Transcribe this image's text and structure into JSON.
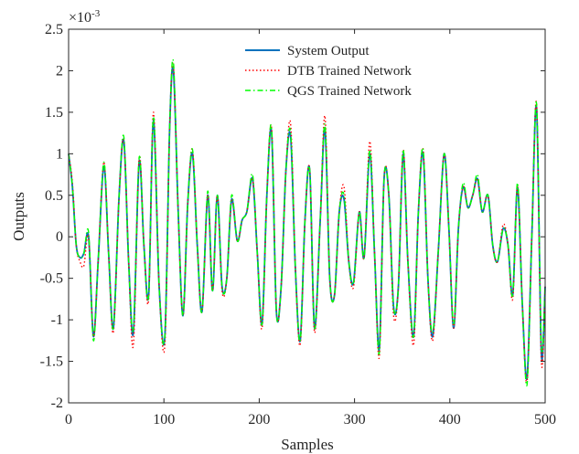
{
  "chart_data": {
    "type": "line",
    "title": "",
    "xlabel": "Samples",
    "ylabel": "Outputs",
    "exponent_label": "×10",
    "exponent_power": "-3",
    "xlim": [
      0,
      500
    ],
    "ylim": [
      -2,
      2.5
    ],
    "xticks": [
      0,
      100,
      200,
      300,
      400,
      500
    ],
    "yticks": [
      -2,
      -1.5,
      -1,
      -0.5,
      0,
      0.5,
      1,
      1.5,
      2,
      2.5
    ],
    "xtick_labels": [
      "0",
      "100",
      "200",
      "300",
      "400",
      "500"
    ],
    "ytick_labels": [
      "-2",
      "-1.5",
      "-1",
      "-0.5",
      "0",
      "0.5",
      "1",
      "1.5",
      "2",
      "2.5"
    ],
    "grid": false,
    "legend_position": "top-center",
    "series": [
      {
        "name": "System Output",
        "color": "#0072BD",
        "style": "solid",
        "x": [
          0,
          4,
          8,
          12,
          16,
          21,
          26,
          31,
          37,
          42,
          47,
          53,
          58,
          63,
          68,
          74,
          79,
          84,
          89,
          95,
          101,
          106,
          110,
          115,
          120,
          125,
          130,
          135,
          140,
          146,
          151,
          156,
          161,
          166,
          171,
          177,
          182,
          187,
          193,
          198,
          203,
          208,
          213,
          218,
          223,
          228,
          233,
          238,
          243,
          248,
          253,
          258,
          264,
          269,
          274,
          279,
          284,
          289,
          294,
          299,
          305,
          310,
          316,
          321,
          326,
          331,
          336,
          341,
          346,
          351,
          356,
          362,
          367,
          372,
          377,
          382,
          388,
          394,
          399,
          404,
          409,
          414,
          419,
          424,
          429,
          434,
          440,
          445,
          450,
          456,
          461,
          466,
          471,
          476,
          481,
          486,
          491,
          496,
          500
        ],
        "y": [
          1.0,
          0.6,
          -0.1,
          -0.25,
          -0.2,
          0.0,
          -1.2,
          -0.3,
          0.85,
          -0.2,
          -1.1,
          0.5,
          1.15,
          -0.3,
          -1.15,
          0.9,
          -0.1,
          -0.7,
          1.4,
          -0.6,
          -1.2,
          1.3,
          2.0,
          0.3,
          -0.95,
          0.4,
          1.0,
          -0.1,
          -0.9,
          0.5,
          -0.65,
          0.5,
          -0.6,
          -0.5,
          0.45,
          -0.05,
          0.2,
          0.3,
          0.7,
          -0.2,
          -1.05,
          0.5,
          1.25,
          -0.9,
          -0.6,
          0.8,
          1.2,
          -0.4,
          -1.25,
          0.2,
          0.8,
          -1.1,
          0.2,
          1.3,
          -0.5,
          -0.7,
          0.3,
          0.45,
          -0.3,
          -0.55,
          0.3,
          -0.25,
          1.0,
          -0.2,
          -1.35,
          0.7,
          0.5,
          -0.85,
          -0.6,
          1.0,
          -0.3,
          -1.2,
          0.3,
          1.0,
          -0.5,
          -1.2,
          -0.15,
          1.0,
          0.1,
          -1.1,
          0.1,
          0.6,
          0.35,
          0.5,
          0.7,
          0.3,
          0.5,
          -0.1,
          -0.3,
          0.1,
          -0.1,
          -0.7,
          0.6,
          -0.8,
          -1.7,
          0.0,
          1.55,
          -1.4,
          -0.6
        ]
      },
      {
        "name": "DTB Trained Network",
        "color": "#FF0000",
        "style": "dotted",
        "x": [
          0,
          4,
          8,
          12,
          16,
          21,
          26,
          31,
          37,
          42,
          47,
          53,
          58,
          63,
          68,
          74,
          79,
          84,
          89,
          95,
          101,
          106,
          110,
          115,
          120,
          125,
          130,
          135,
          140,
          146,
          151,
          156,
          161,
          166,
          171,
          177,
          182,
          187,
          193,
          198,
          203,
          208,
          213,
          218,
          223,
          228,
          233,
          238,
          243,
          248,
          253,
          258,
          264,
          269,
          274,
          279,
          284,
          289,
          294,
          299,
          305,
          310,
          316,
          321,
          326,
          331,
          336,
          341,
          346,
          351,
          356,
          362,
          367,
          372,
          377,
          382,
          388,
          394,
          399,
          404,
          409,
          414,
          419,
          424,
          429,
          434,
          440,
          445,
          450,
          456,
          461,
          466,
          471,
          476,
          481,
          486,
          491,
          496,
          500
        ],
        "y": [
          1.0,
          0.65,
          -0.1,
          -0.3,
          -0.35,
          0.0,
          -1.2,
          -0.3,
          0.9,
          -0.2,
          -1.15,
          0.5,
          1.15,
          -0.3,
          -1.3,
          0.95,
          -0.1,
          -0.75,
          1.5,
          -0.6,
          -1.3,
          1.3,
          2.05,
          0.3,
          -0.95,
          0.4,
          1.05,
          -0.1,
          -0.9,
          0.5,
          -0.65,
          0.5,
          -0.65,
          -0.5,
          0.45,
          -0.05,
          0.2,
          0.3,
          0.7,
          -0.2,
          -1.1,
          0.5,
          1.3,
          -0.9,
          -0.6,
          0.8,
          1.35,
          -0.4,
          -1.3,
          0.2,
          0.8,
          -1.15,
          0.2,
          1.45,
          -0.5,
          -0.7,
          0.3,
          0.6,
          -0.3,
          -0.6,
          0.3,
          -0.25,
          1.15,
          -0.2,
          -1.45,
          0.7,
          0.5,
          -0.95,
          -0.6,
          1.05,
          -0.3,
          -1.3,
          0.3,
          1.05,
          -0.5,
          -1.25,
          -0.15,
          1.0,
          0.1,
          -1.1,
          0.1,
          0.6,
          0.35,
          0.5,
          0.7,
          0.3,
          0.5,
          -0.1,
          -0.3,
          0.15,
          -0.1,
          -0.75,
          0.6,
          -0.8,
          -1.75,
          0.0,
          1.6,
          -1.5,
          -0.6
        ]
      },
      {
        "name": "QGS Trained Network",
        "color": "#00FF00",
        "style": "dashdot",
        "x": [
          0,
          4,
          8,
          12,
          16,
          21,
          26,
          31,
          37,
          42,
          47,
          53,
          58,
          63,
          68,
          74,
          79,
          84,
          89,
          95,
          101,
          106,
          110,
          115,
          120,
          125,
          130,
          135,
          140,
          146,
          151,
          156,
          161,
          166,
          171,
          177,
          182,
          187,
          193,
          198,
          203,
          208,
          213,
          218,
          223,
          228,
          233,
          238,
          243,
          248,
          253,
          258,
          264,
          269,
          274,
          279,
          284,
          289,
          294,
          299,
          305,
          310,
          316,
          321,
          326,
          331,
          336,
          341,
          346,
          351,
          356,
          362,
          367,
          372,
          377,
          382,
          388,
          394,
          399,
          404,
          409,
          414,
          419,
          424,
          429,
          434,
          440,
          445,
          450,
          456,
          461,
          466,
          471,
          476,
          481,
          486,
          491,
          496,
          500
        ],
        "y": [
          1.0,
          0.6,
          -0.1,
          -0.25,
          -0.2,
          0.05,
          -1.25,
          -0.3,
          0.9,
          -0.2,
          -1.1,
          0.5,
          1.2,
          -0.3,
          -1.1,
          0.95,
          -0.1,
          -0.7,
          1.45,
          -0.6,
          -1.2,
          1.3,
          2.1,
          0.3,
          -0.95,
          0.4,
          1.05,
          -0.1,
          -0.9,
          0.55,
          -0.65,
          0.5,
          -0.6,
          -0.5,
          0.5,
          -0.05,
          0.2,
          0.3,
          0.75,
          -0.2,
          -1.05,
          0.5,
          1.3,
          -0.9,
          -0.6,
          0.8,
          1.25,
          -0.4,
          -1.25,
          0.2,
          0.8,
          -1.1,
          0.2,
          1.35,
          -0.5,
          -0.7,
          0.3,
          0.5,
          -0.3,
          -0.55,
          0.3,
          -0.25,
          1.05,
          -0.2,
          -1.4,
          0.7,
          0.5,
          -0.85,
          -0.6,
          1.05,
          -0.3,
          -1.2,
          0.3,
          1.05,
          -0.5,
          -1.15,
          -0.15,
          1.0,
          0.1,
          -1.05,
          0.1,
          0.65,
          0.35,
          0.5,
          0.75,
          0.3,
          0.5,
          -0.1,
          -0.3,
          0.1,
          -0.1,
          -0.7,
          0.65,
          -0.8,
          -1.78,
          0.0,
          1.6,
          -1.3,
          -0.6
        ]
      }
    ]
  }
}
